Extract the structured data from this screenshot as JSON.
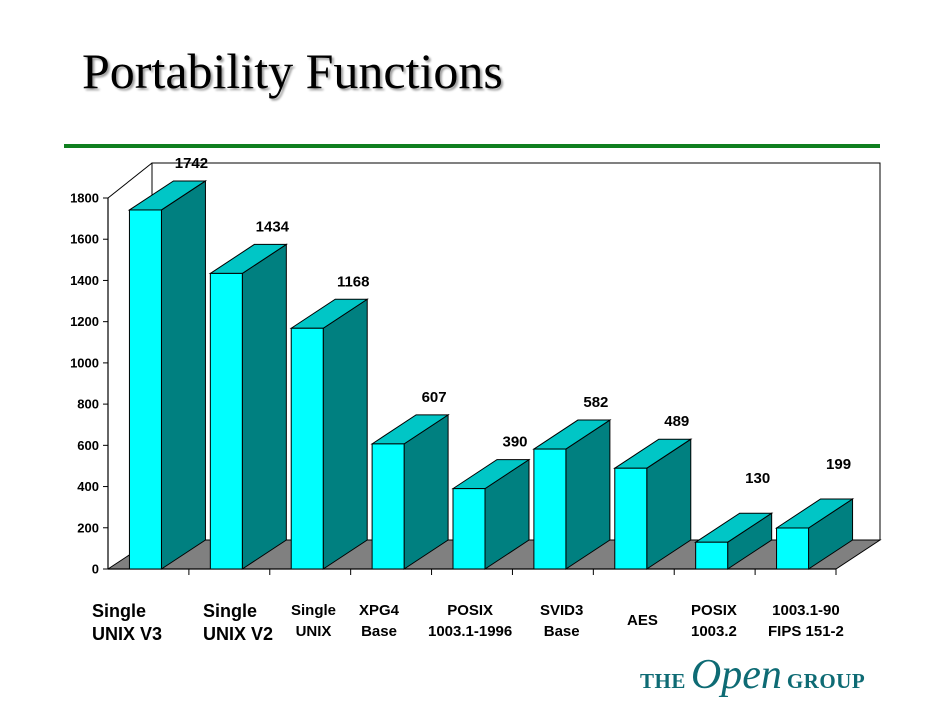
{
  "slide": {
    "title": "Portability Functions",
    "logo": {
      "word1": "THE",
      "word2": "Open",
      "word3": "GROUP"
    }
  },
  "colors": {
    "bar_front": "#00ffff",
    "bar_top": "#00c6c6",
    "bar_side": "#008080",
    "floor": "#808080",
    "rule": "#0f7f1f"
  },
  "chart_data": {
    "type": "bar",
    "title": "",
    "categories": [
      "Single\nUNIX V3",
      "Single\nUNIX V2",
      "Single\nUNIX",
      "XPG4\nBase",
      "POSIX\n1003.1-1996",
      "SVID3\nBase",
      "AES",
      "POSIX\n1003.2",
      "1003.1-90\nFIPS 151-2"
    ],
    "values": [
      1742,
      1434,
      1168,
      607,
      390,
      582,
      489,
      130,
      199
    ],
    "yticks": [
      0,
      200,
      400,
      600,
      800,
      1000,
      1200,
      1400,
      1600,
      1800
    ],
    "ylim": [
      0,
      1800
    ],
    "xlabel": "",
    "ylabel": "",
    "grid": false,
    "style": "3d"
  }
}
